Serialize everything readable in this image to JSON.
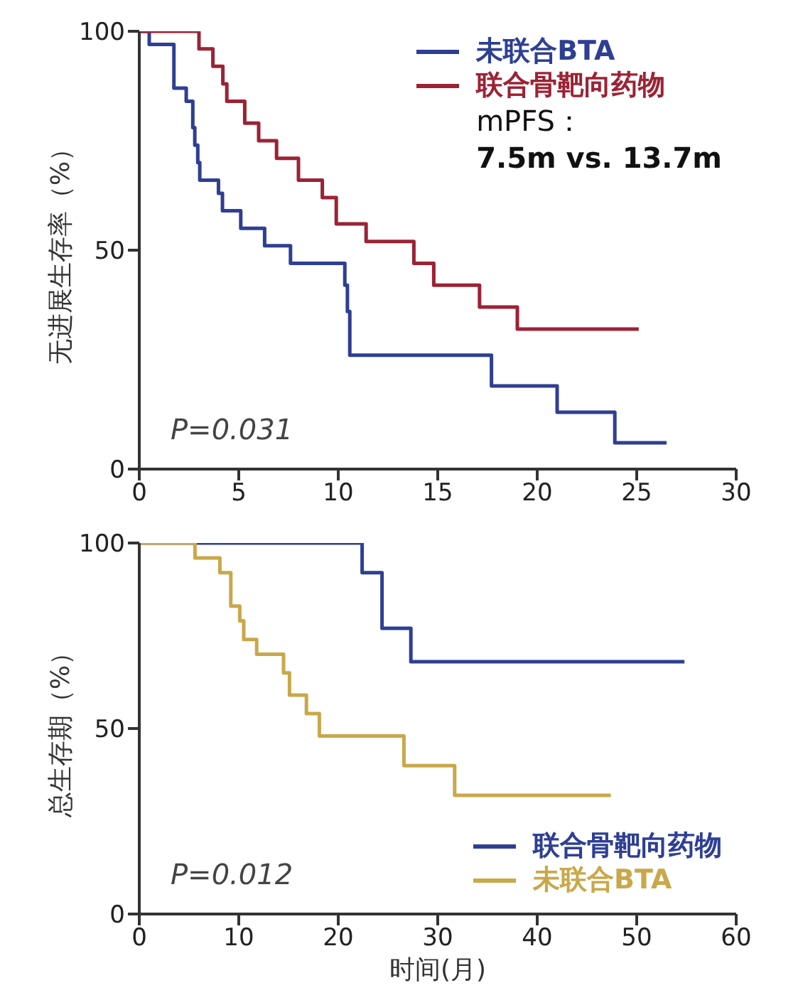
{
  "chart_data": [
    {
      "type": "step",
      "ylabel": "无进展生存率（%）",
      "xlim": [
        0,
        30
      ],
      "xticks": [
        0,
        5,
        10,
        15,
        20,
        25,
        30
      ],
      "ylim": [
        0,
        100
      ],
      "yticks": [
        0,
        50,
        100
      ],
      "legend": "top right",
      "marker": "none",
      "line_style": "solid",
      "annotations": [
        "mPFS：",
        "7.5m vs. 13.7m",
        "P=0.031"
      ],
      "series": [
        {
          "name": "未联合BTA",
          "color": "#2e3f93",
          "x": [
            0,
            0.5,
            1.74,
            2.36,
            2.69,
            2.79,
            2.94,
            3.04,
            3.98,
            4.18,
            5.1,
            6.3,
            7.6,
            10.33,
            10.46,
            10.58,
            17.7,
            21.0,
            23.9,
            26.5
          ],
          "values": [
            100,
            97,
            87,
            84,
            78,
            74,
            70,
            66,
            63,
            59,
            55,
            51,
            47,
            42,
            36,
            26,
            19,
            13,
            6,
            6
          ]
        },
        {
          "name": "联合骨靶向药物",
          "color": "#9b2335",
          "x": [
            0,
            3.0,
            3.7,
            4.2,
            4.4,
            5.3,
            6.0,
            6.9,
            8.0,
            9.2,
            9.9,
            11.4,
            13.8,
            14.8,
            17.1,
            19.0,
            25.1
          ],
          "values": [
            100,
            96,
            92,
            88,
            84,
            79,
            75,
            71,
            66,
            62,
            56,
            52,
            47,
            42,
            37,
            32,
            32
          ]
        }
      ]
    },
    {
      "type": "step",
      "xlabel": "时间(月)",
      "ylabel": "总生存期（%）",
      "xlim": [
        0,
        60
      ],
      "xticks": [
        0,
        10,
        20,
        30,
        40,
        50,
        60
      ],
      "ylim": [
        0,
        100
      ],
      "yticks": [
        0,
        50,
        100
      ],
      "legend": "bottom right",
      "marker": "none",
      "line_style": "solid",
      "annotations": [
        "P=0.012"
      ],
      "series": [
        {
          "name": "联合骨靶向药物",
          "color": "#2e3f93",
          "x": [
            0,
            22.4,
            24.4,
            27.3,
            54.8
          ],
          "values": [
            100,
            92,
            77,
            68,
            68
          ]
        },
        {
          "name": "未联合BTA",
          "color": "#c9a84a",
          "x": [
            0,
            5.6,
            8.1,
            9.2,
            10.1,
            10.5,
            11.8,
            14.5,
            15.1,
            16.8,
            18.1,
            26.6,
            31.7,
            47.4
          ],
          "values": [
            100,
            96,
            92,
            83,
            79,
            74,
            70,
            65,
            59,
            54,
            48,
            40,
            32,
            32
          ]
        }
      ]
    }
  ]
}
